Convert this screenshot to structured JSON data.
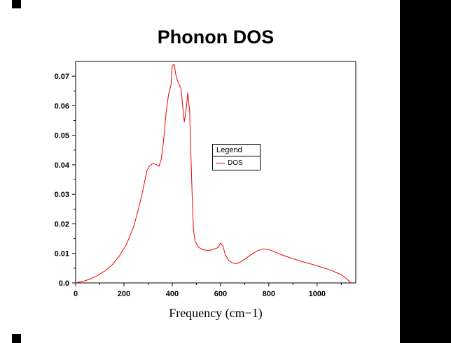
{
  "chart_data": {
    "type": "line",
    "title": "Phonon DOS",
    "xlabel": "Frequency (cm−1)",
    "ylabel": "",
    "xlim": [
      0,
      1160
    ],
    "ylim": [
      0,
      0.075
    ],
    "grid": false,
    "xticks": {
      "values": [
        0,
        200,
        400,
        600,
        800,
        1000
      ],
      "labels": [
        "0",
        "200",
        "400",
        "600",
        "800",
        "1000"
      ]
    },
    "yticks": {
      "values": [
        0,
        0.01,
        0.02,
        0.03,
        0.04,
        0.05,
        0.06,
        0.07
      ],
      "labels": [
        "0.0",
        "0.01",
        "0.02",
        "0.03",
        "0.04",
        "0.05",
        "0.06",
        "0.07"
      ]
    },
    "legend": {
      "title": "Legend",
      "position": "inside-right",
      "entries": [
        {
          "label": "DOS",
          "color": "#f00000"
        }
      ]
    },
    "series": [
      {
        "name": "DOS",
        "color": "#f00000",
        "points": [
          [
            0,
            0
          ],
          [
            30,
            0.0005
          ],
          [
            60,
            0.0013
          ],
          [
            90,
            0.0025
          ],
          [
            120,
            0.004
          ],
          [
            150,
            0.006
          ],
          [
            180,
            0.009
          ],
          [
            210,
            0.013
          ],
          [
            240,
            0.019
          ],
          [
            260,
            0.025
          ],
          [
            280,
            0.032
          ],
          [
            295,
            0.038
          ],
          [
            305,
            0.0395
          ],
          [
            320,
            0.0405
          ],
          [
            335,
            0.04
          ],
          [
            345,
            0.0395
          ],
          [
            355,
            0.042
          ],
          [
            365,
            0.049
          ],
          [
            375,
            0.058
          ],
          [
            385,
            0.064
          ],
          [
            390,
            0.0655
          ],
          [
            395,
            0.067
          ],
          [
            400,
            0.0735
          ],
          [
            408,
            0.074
          ],
          [
            415,
            0.0705
          ],
          [
            422,
            0.0685
          ],
          [
            430,
            0.067
          ],
          [
            437,
            0.0655
          ],
          [
            443,
            0.06
          ],
          [
            450,
            0.0545
          ],
          [
            458,
            0.059
          ],
          [
            465,
            0.0645
          ],
          [
            472,
            0.058
          ],
          [
            478,
            0.042
          ],
          [
            483,
            0.028
          ],
          [
            488,
            0.018
          ],
          [
            495,
            0.014
          ],
          [
            510,
            0.012
          ],
          [
            530,
            0.0112
          ],
          [
            555,
            0.011
          ],
          [
            575,
            0.0115
          ],
          [
            590,
            0.012
          ],
          [
            600,
            0.0135
          ],
          [
            610,
            0.0125
          ],
          [
            620,
            0.0095
          ],
          [
            635,
            0.0075
          ],
          [
            650,
            0.0068
          ],
          [
            665,
            0.0065
          ],
          [
            680,
            0.007
          ],
          [
            700,
            0.008
          ],
          [
            725,
            0.0095
          ],
          [
            750,
            0.0108
          ],
          [
            775,
            0.0115
          ],
          [
            800,
            0.0113
          ],
          [
            825,
            0.0105
          ],
          [
            850,
            0.0096
          ],
          [
            875,
            0.0089
          ],
          [
            900,
            0.0082
          ],
          [
            940,
            0.0072
          ],
          [
            980,
            0.0063
          ],
          [
            1020,
            0.0053
          ],
          [
            1060,
            0.0042
          ],
          [
            1100,
            0.0028
          ],
          [
            1125,
            0.0012
          ],
          [
            1140,
            0
          ]
        ]
      }
    ]
  },
  "decor": {
    "right_panel_color": "#000000",
    "corner_mark_color": "#000000"
  }
}
